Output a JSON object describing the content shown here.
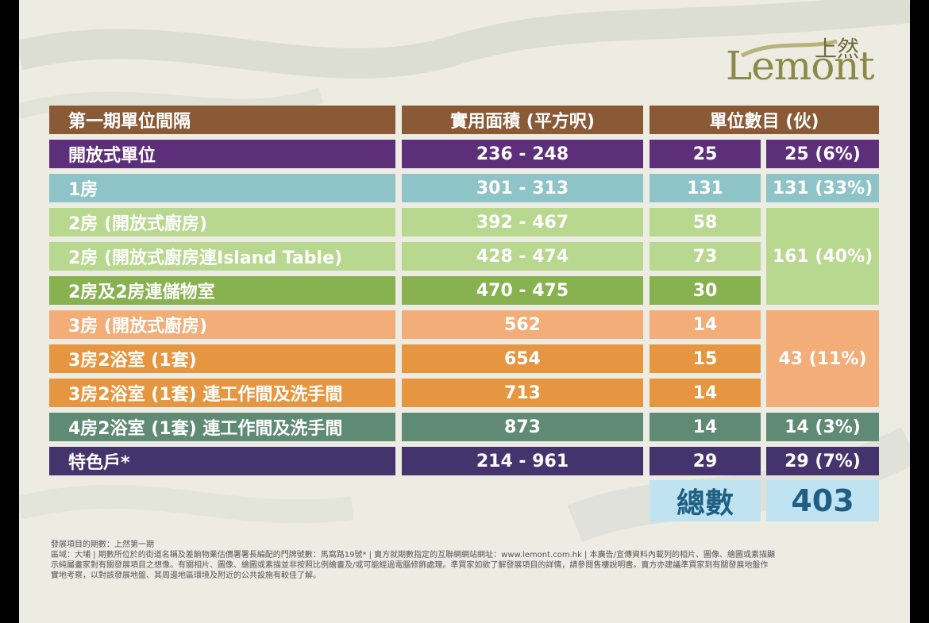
{
  "brand": {
    "logo_word": "Lemont",
    "logo_cn": "上然"
  },
  "colors": {
    "header": "#8a5a37",
    "purple": "#5d2f7a",
    "teal": "#8ec3c8",
    "light_green": "#b8d78f",
    "green": "#88b250",
    "light_orange": "#f2ad78",
    "orange": "#e69640",
    "slate_green": "#5f8a74",
    "navy_purple": "#45336e",
    "total_bg": "#bfe3f1",
    "total_text": "#1f5f84"
  },
  "table": {
    "headers": {
      "unit_type": "第一期單位間隔",
      "area": "實用面積 (平方呎)",
      "count": "單位數目 (伙)"
    },
    "rows": [
      {
        "type": "開放式單位",
        "area": "236 - 248",
        "count": "25"
      },
      {
        "type": "1房",
        "area": "301 - 313",
        "count": "131"
      },
      {
        "type": "2房 (開放式廚房)",
        "area": "392 - 467",
        "count": "58"
      },
      {
        "type": "2房 (開放式廚房連Island Table)",
        "area": "428 - 474",
        "count": "73"
      },
      {
        "type": "2房及2房連儲物室",
        "area": "470 - 475",
        "count": "30"
      },
      {
        "type": "3房 (開放式廚房)",
        "area": "562",
        "count": "14"
      },
      {
        "type": "3房2浴室 (1套)",
        "area": "654",
        "count": "15"
      },
      {
        "type": "3房2浴室 (1套) 連工作間及洗手間",
        "area": "713",
        "count": "14"
      },
      {
        "type": "4房2浴室 (1套) 連工作間及洗手間",
        "area": "873",
        "count": "14"
      },
      {
        "type": "特色戶*",
        "area": "214 - 961",
        "count": "29"
      }
    ],
    "group_totals": [
      "25 (6%)",
      "131 (33%)",
      "161 (40%)",
      "43 (11%)",
      "14 (3%)",
      "29 (7%)"
    ],
    "total_label": "總數",
    "total_value": "403"
  },
  "notes": {
    "line1": "發展項目的期數：上然第一期",
    "line2": "區域：大埔 | 期數所位於的街道名稱及差餉物業估價署署長編配的門牌號數：馬窩路19號* | 賣方就期數指定的互聯網網站網址：www.lemont.com.hk | 本廣告/宣傳資料內載列的相片、圖像、繪圖或素描顯",
    "line3": "示純屬畫家對有關發展項目之想像。有關相片、圖像、繪圖或素描並非按照比例繪畫及/或可能經過電腦修飾處理。準買家如欲了解發展項目的詳情，請參閱售樓說明書。賣方亦建議準買家到有關發展地盤作",
    "line4": "實地考察，以對該發展地盤、其周邊地區環境及附近的公共設施有較佳了解。"
  }
}
